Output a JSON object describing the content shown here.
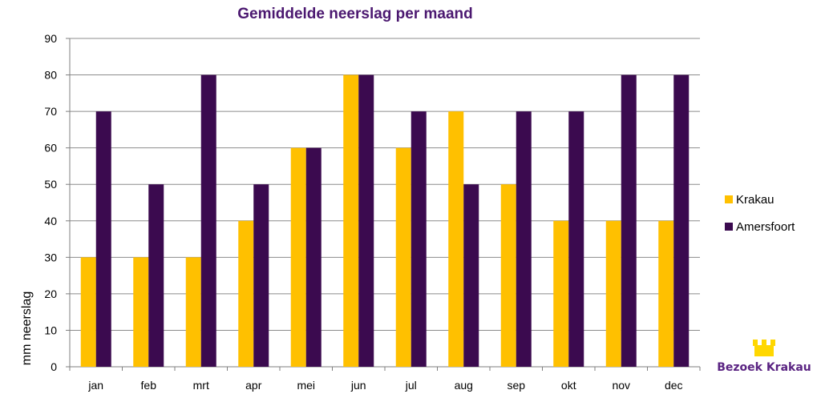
{
  "chart_data": {
    "type": "bar",
    "title": "Gemiddelde neerslag per maand",
    "ylabel": "mm neerslag",
    "xlabel": "",
    "categories": [
      "jan",
      "feb",
      "mrt",
      "apr",
      "mei",
      "jun",
      "jul",
      "aug",
      "sep",
      "okt",
      "nov",
      "dec"
    ],
    "series": [
      {
        "name": "Krakau",
        "color": "#FFC000",
        "values": [
          30,
          30,
          30,
          40,
          60,
          80,
          60,
          70,
          50,
          40,
          40,
          40
        ]
      },
      {
        "name": "Amersfoort",
        "color": "#3B0A4F",
        "values": [
          70,
          50,
          80,
          50,
          60,
          80,
          70,
          50,
          70,
          70,
          80,
          80
        ]
      }
    ],
    "ylim": [
      0,
      90
    ],
    "yticks": [
      0,
      10,
      20,
      30,
      40,
      50,
      60,
      70,
      80,
      90
    ],
    "grid": true,
    "legend_position": "right"
  },
  "title_color": "#4B1870",
  "logo": {
    "text": "Bezoek Krakau",
    "icon": "castle-icon",
    "color": "#5A2382",
    "icon_color": "#FFD700"
  }
}
